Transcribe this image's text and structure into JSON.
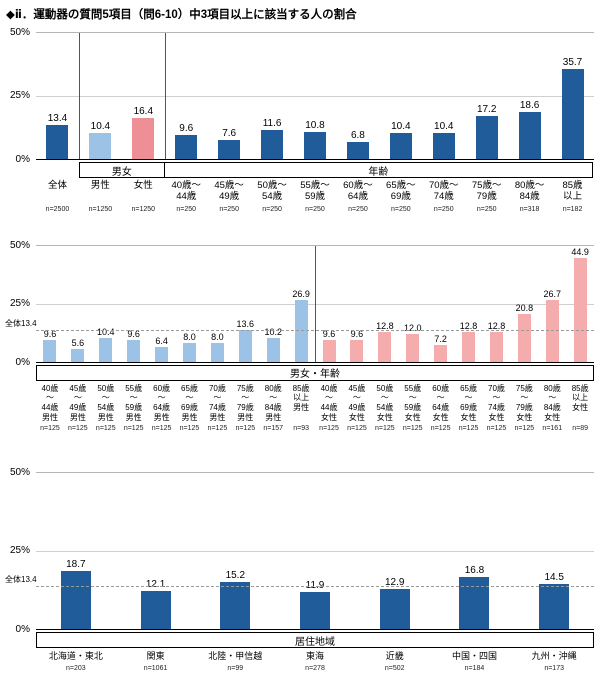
{
  "title": "◆ⅱ．運動器の質問5項目（問6-10）中3項目以上に該当する人の割合",
  "y_axis": {
    "ticks": [
      "50%",
      "25%",
      "0%"
    ]
  },
  "colors": {
    "dark": "#1f5c99",
    "male": "#9cc3e5",
    "female": "#ee8f96",
    "female_light": "#f5acac"
  },
  "chart_data": [
    {
      "type": "bar",
      "ylim": [
        0,
        50
      ],
      "groups": [
        {
          "label": "男女",
          "start": 1,
          "span": 2
        },
        {
          "label": "年齢",
          "start": 3,
          "span": 10
        }
      ],
      "separators": [
        1,
        3
      ],
      "bars": [
        {
          "label": [
            "全体"
          ],
          "n": "n=2500",
          "value": 13.4,
          "color": "dark"
        },
        {
          "label": [
            "男性"
          ],
          "n": "n=1250",
          "value": 10.4,
          "color": "male"
        },
        {
          "label": [
            "女性"
          ],
          "n": "n=1250",
          "value": 16.4,
          "color": "female"
        },
        {
          "label": [
            "40歳～",
            "44歳"
          ],
          "n": "n=250",
          "value": 9.6,
          "color": "dark"
        },
        {
          "label": [
            "45歳～",
            "49歳"
          ],
          "n": "n=250",
          "value": 7.6,
          "color": "dark"
        },
        {
          "label": [
            "50歳～",
            "54歳"
          ],
          "n": "n=250",
          "value": 11.6,
          "color": "dark"
        },
        {
          "label": [
            "55歳～",
            "59歳"
          ],
          "n": "n=250",
          "value": 10.8,
          "color": "dark"
        },
        {
          "label": [
            "60歳～",
            "64歳"
          ],
          "n": "n=250",
          "value": 6.8,
          "color": "dark"
        },
        {
          "label": [
            "65歳～",
            "69歳"
          ],
          "n": "n=250",
          "value": 10.4,
          "color": "dark"
        },
        {
          "label": [
            "70歳～",
            "74歳"
          ],
          "n": "n=250",
          "value": 10.4,
          "color": "dark"
        },
        {
          "label": [
            "75歳～",
            "79歳"
          ],
          "n": "n=250",
          "value": 17.2,
          "color": "dark"
        },
        {
          "label": [
            "80歳～",
            "84歳"
          ],
          "n": "n=318",
          "value": 18.6,
          "color": "dark"
        },
        {
          "label": [
            "85歳",
            "以上"
          ],
          "n": "n=182",
          "value": 35.7,
          "color": "dark"
        }
      ]
    },
    {
      "type": "bar",
      "ylim": [
        0,
        50
      ],
      "overall": {
        "label": "全体13.4",
        "value": 13.4
      },
      "groups": [
        {
          "label": "男女・年齢",
          "start": 0,
          "span": 20
        }
      ],
      "separators": [
        10
      ],
      "bars": [
        {
          "label": [
            "40歳",
            "～",
            "44歳",
            "男性"
          ],
          "n": "n=125",
          "value": 9.6,
          "color": "male"
        },
        {
          "label": [
            "45歳",
            "～",
            "49歳",
            "男性"
          ],
          "n": "n=125",
          "value": 5.6,
          "color": "male"
        },
        {
          "label": [
            "50歳",
            "～",
            "54歳",
            "男性"
          ],
          "n": "n=125",
          "value": 10.4,
          "color": "male"
        },
        {
          "label": [
            "55歳",
            "～",
            "59歳",
            "男性"
          ],
          "n": "n=125",
          "value": 9.6,
          "color": "male"
        },
        {
          "label": [
            "60歳",
            "～",
            "64歳",
            "男性"
          ],
          "n": "n=125",
          "value": 6.4,
          "color": "male"
        },
        {
          "label": [
            "65歳",
            "～",
            "69歳",
            "男性"
          ],
          "n": "n=125",
          "value": 8.0,
          "color": "male"
        },
        {
          "label": [
            "70歳",
            "～",
            "74歳",
            "男性"
          ],
          "n": "n=125",
          "value": 8.0,
          "color": "male"
        },
        {
          "label": [
            "75歳",
            "～",
            "79歳",
            "男性"
          ],
          "n": "n=125",
          "value": 13.6,
          "color": "male"
        },
        {
          "label": [
            "80歳",
            "～",
            "84歳",
            "男性"
          ],
          "n": "n=157",
          "value": 10.2,
          "color": "male"
        },
        {
          "label": [
            "85歳",
            "以上",
            "男性"
          ],
          "n": "n=93",
          "value": 26.9,
          "color": "male"
        },
        {
          "label": [
            "40歳",
            "～",
            "44歳",
            "女性"
          ],
          "n": "n=125",
          "value": 9.6,
          "color": "female_light"
        },
        {
          "label": [
            "45歳",
            "～",
            "49歳",
            "女性"
          ],
          "n": "n=125",
          "value": 9.6,
          "color": "female_light"
        },
        {
          "label": [
            "50歳",
            "～",
            "54歳",
            "女性"
          ],
          "n": "n=125",
          "value": 12.8,
          "color": "female_light"
        },
        {
          "label": [
            "55歳",
            "～",
            "59歳",
            "女性"
          ],
          "n": "n=125",
          "value": 12.0,
          "color": "female_light"
        },
        {
          "label": [
            "60歳",
            "～",
            "64歳",
            "女性"
          ],
          "n": "n=125",
          "value": 7.2,
          "color": "female_light"
        },
        {
          "label": [
            "65歳",
            "～",
            "69歳",
            "女性"
          ],
          "n": "n=125",
          "value": 12.8,
          "color": "female_light"
        },
        {
          "label": [
            "70歳",
            "～",
            "74歳",
            "女性"
          ],
          "n": "n=125",
          "value": 12.8,
          "color": "female_light"
        },
        {
          "label": [
            "75歳",
            "～",
            "79歳",
            "女性"
          ],
          "n": "n=125",
          "value": 20.8,
          "color": "female_light"
        },
        {
          "label": [
            "80歳",
            "～",
            "84歳",
            "女性"
          ],
          "n": "n=161",
          "value": 26.7,
          "color": "female_light"
        },
        {
          "label": [
            "85歳",
            "以上",
            "女性"
          ],
          "n": "n=89",
          "value": 44.9,
          "color": "female_light"
        }
      ]
    },
    {
      "type": "bar",
      "ylim": [
        0,
        50
      ],
      "overall": {
        "label": "全体13.4",
        "value": 13.4
      },
      "groups": [
        {
          "label": "居住地域",
          "start": 0,
          "span": 7
        }
      ],
      "separators": [],
      "bars": [
        {
          "label": [
            "北海道・東北"
          ],
          "n": "n=203",
          "value": 18.7,
          "color": "dark"
        },
        {
          "label": [
            "関東"
          ],
          "n": "n=1061",
          "value": 12.1,
          "color": "dark"
        },
        {
          "label": [
            "北陸・甲信越"
          ],
          "n": "n=99",
          "value": 15.2,
          "color": "dark"
        },
        {
          "label": [
            "東海"
          ],
          "n": "n=278",
          "value": 11.9,
          "color": "dark"
        },
        {
          "label": [
            "近畿"
          ],
          "n": "n=502",
          "value": 12.9,
          "color": "dark"
        },
        {
          "label": [
            "中国・四国"
          ],
          "n": "n=184",
          "value": 16.8,
          "color": "dark"
        },
        {
          "label": [
            "九州・沖縄"
          ],
          "n": "n=173",
          "value": 14.5,
          "color": "dark"
        }
      ]
    }
  ]
}
